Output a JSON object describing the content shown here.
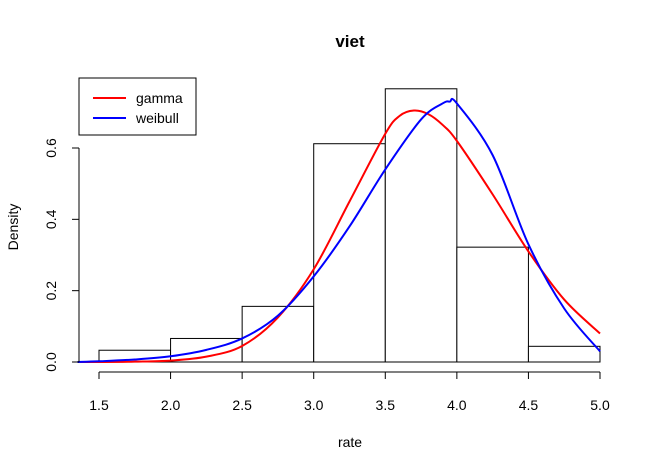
{
  "chart_data": {
    "type": "histogram",
    "title": "viet",
    "xlabel": "rate",
    "ylabel": "Density",
    "xlim": [
      1.35,
      5.0
    ],
    "ylim": [
      0,
      0.77
    ],
    "x_ticks": [
      "1.5",
      "2.0",
      "2.5",
      "3.0",
      "3.5",
      "4.0",
      "4.5",
      "5.0"
    ],
    "y_ticks": [
      "0.0",
      "0.2",
      "0.4",
      "0.6"
    ],
    "bins": [
      {
        "from": 1.5,
        "to": 2.0,
        "density": 0.033
      },
      {
        "from": 2.0,
        "to": 2.5,
        "density": 0.066
      },
      {
        "from": 2.5,
        "to": 3.0,
        "density": 0.156
      },
      {
        "from": 3.0,
        "to": 3.5,
        "density": 0.612
      },
      {
        "from": 3.5,
        "to": 4.0,
        "density": 0.766
      },
      {
        "from": 4.0,
        "to": 4.5,
        "density": 0.322
      },
      {
        "from": 4.5,
        "to": 5.0,
        "density": 0.044
      }
    ],
    "series": [
      {
        "name": "gamma",
        "color": "#ff0000",
        "x": [
          1.35,
          1.5,
          1.75,
          2.0,
          2.25,
          2.5,
          2.75,
          3.0,
          3.25,
          3.5,
          3.6,
          3.7,
          3.8,
          3.9,
          4.0,
          4.25,
          4.5,
          4.75,
          5.0
        ],
        "y": [
          0.0,
          0.0,
          0.001,
          0.004,
          0.015,
          0.045,
          0.125,
          0.26,
          0.45,
          0.64,
          0.69,
          0.705,
          0.695,
          0.665,
          0.62,
          0.47,
          0.31,
          0.175,
          0.08
        ]
      },
      {
        "name": "weibull",
        "color": "#0000ff",
        "x": [
          1.35,
          1.5,
          1.75,
          2.0,
          2.25,
          2.5,
          2.75,
          3.0,
          3.25,
          3.5,
          3.75,
          3.9,
          3.95,
          4.0,
          4.25,
          4.5,
          4.75,
          5.0
        ],
        "y": [
          0.0,
          0.002,
          0.007,
          0.016,
          0.034,
          0.066,
          0.13,
          0.24,
          0.38,
          0.54,
          0.68,
          0.725,
          0.73,
          0.725,
          0.58,
          0.33,
          0.15,
          0.03
        ]
      }
    ],
    "legend": {
      "position": "top-left",
      "entries": [
        "gamma",
        "weibull"
      ]
    }
  }
}
